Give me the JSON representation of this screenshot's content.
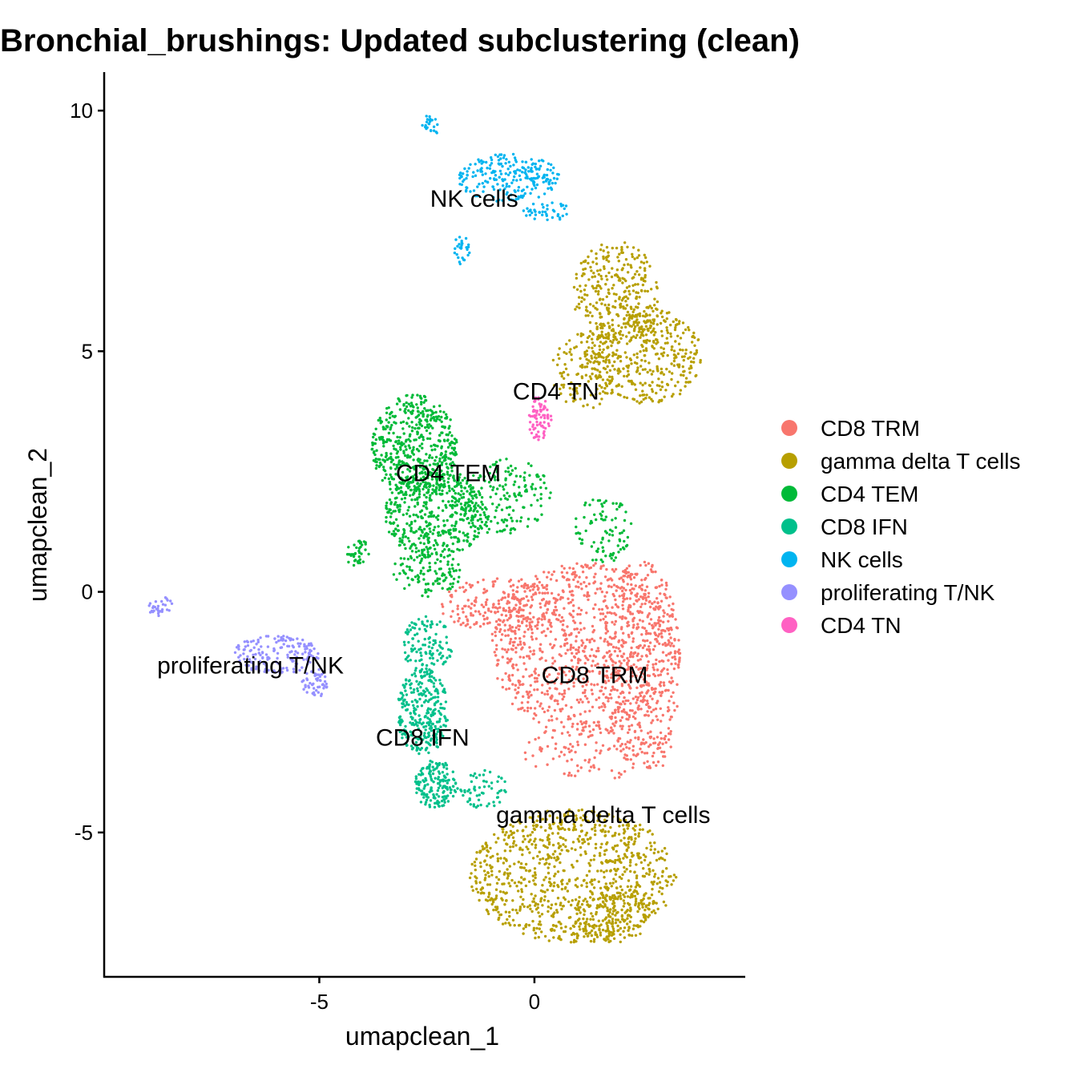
{
  "chart_data": {
    "type": "scatter",
    "title": "Bronchial_brushings: Updated subclustering (clean)",
    "xlabel": "umapclean_1",
    "ylabel": "umapclean_2",
    "xlim": [
      -10.0,
      4.9
    ],
    "ylim": [
      -8,
      10.8
    ],
    "x_ticks": [
      -5,
      0
    ],
    "y_ticks": [
      -5,
      0,
      5,
      10
    ],
    "grid": false,
    "legend_position": "right",
    "series": [
      {
        "name": "CD8 TRM",
        "color": "#F8766D",
        "label": "CD8 TRM",
        "label_pos": [
          1.4,
          -1.9
        ],
        "regions": [
          {
            "cx": 1.2,
            "cy": -1.2,
            "rx": 2.2,
            "ry": 1.8,
            "n": 900
          },
          {
            "cx": 2.5,
            "cy": -1.5,
            "rx": 0.9,
            "ry": 2.2,
            "n": 420
          },
          {
            "cx": -0.8,
            "cy": -0.3,
            "rx": 1.4,
            "ry": 0.6,
            "n": 220
          },
          {
            "cx": 1.5,
            "cy": -3.3,
            "rx": 1.8,
            "ry": 0.6,
            "n": 120
          }
        ]
      },
      {
        "name": "gamma delta T cells",
        "color": "#B79F00",
        "label": "gamma delta T cells",
        "label_pos": [
          1.6,
          -4.8
        ],
        "regions": [
          {
            "cx": 0.9,
            "cy": -5.9,
            "rx": 2.4,
            "ry": 1.4,
            "n": 900
          },
          {
            "cx": 1.8,
            "cy": -6.7,
            "rx": 0.9,
            "ry": 0.6,
            "n": 180
          },
          {
            "cx": 1.9,
            "cy": 6.2,
            "rx": 1.0,
            "ry": 1.1,
            "n": 320
          },
          {
            "cx": 2.6,
            "cy": 4.9,
            "rx": 1.3,
            "ry": 1.0,
            "n": 380
          },
          {
            "cx": 1.2,
            "cy": 4.6,
            "rx": 0.8,
            "ry": 0.8,
            "n": 140
          }
        ]
      },
      {
        "name": "CD4 TEM",
        "color": "#00BA38",
        "label": "CD4 TEM",
        "label_pos": [
          -2.0,
          2.3
        ],
        "regions": [
          {
            "cx": -2.8,
            "cy": 3.0,
            "rx": 1.0,
            "ry": 1.1,
            "n": 520
          },
          {
            "cx": -2.3,
            "cy": 1.6,
            "rx": 1.2,
            "ry": 0.9,
            "n": 420
          },
          {
            "cx": -0.8,
            "cy": 2.0,
            "rx": 1.2,
            "ry": 0.8,
            "n": 200
          },
          {
            "cx": 1.6,
            "cy": 1.3,
            "rx": 0.7,
            "ry": 0.7,
            "n": 90
          },
          {
            "cx": -4.1,
            "cy": 0.8,
            "rx": 0.3,
            "ry": 0.3,
            "n": 40
          },
          {
            "cx": -2.5,
            "cy": 0.4,
            "rx": 0.8,
            "ry": 0.5,
            "n": 110
          }
        ]
      },
      {
        "name": "CD8 IFN",
        "color": "#00C08B",
        "label": "CD8 IFN",
        "label_pos": [
          -2.6,
          -3.2
        ],
        "regions": [
          {
            "cx": -2.5,
            "cy": -1.1,
            "rx": 0.6,
            "ry": 0.6,
            "n": 120
          },
          {
            "cx": -2.6,
            "cy": -2.5,
            "rx": 0.6,
            "ry": 0.9,
            "n": 280
          },
          {
            "cx": -2.3,
            "cy": -4.0,
            "rx": 0.5,
            "ry": 0.5,
            "n": 160
          },
          {
            "cx": -1.2,
            "cy": -4.1,
            "rx": 0.6,
            "ry": 0.4,
            "n": 60
          }
        ]
      },
      {
        "name": "NK cells",
        "color": "#00B4F0",
        "label": "NK cells",
        "label_pos": [
          -1.4,
          8.0
        ],
        "regions": [
          {
            "cx": -0.6,
            "cy": 8.6,
            "rx": 1.2,
            "ry": 0.5,
            "n": 230
          },
          {
            "cx": -2.4,
            "cy": 9.7,
            "rx": 0.3,
            "ry": 0.2,
            "n": 24
          },
          {
            "cx": -1.7,
            "cy": 7.1,
            "rx": 0.2,
            "ry": 0.3,
            "n": 28
          },
          {
            "cx": 0.3,
            "cy": 7.9,
            "rx": 0.6,
            "ry": 0.2,
            "n": 40
          }
        ]
      },
      {
        "name": "proliferating T/NK",
        "color": "#9590FF",
        "label": "proliferating T/NK",
        "label_pos": [
          -6.6,
          -1.7
        ],
        "regions": [
          {
            "cx": -8.7,
            "cy": -0.3,
            "rx": 0.3,
            "ry": 0.2,
            "n": 30
          },
          {
            "cx": -6.0,
            "cy": -1.3,
            "rx": 1.0,
            "ry": 0.4,
            "n": 170
          },
          {
            "cx": -5.1,
            "cy": -1.9,
            "rx": 0.3,
            "ry": 0.3,
            "n": 50
          }
        ]
      },
      {
        "name": "CD4 TN",
        "color": "#FF61C3",
        "label": "CD4 TN",
        "label_pos": [
          0.5,
          4.0
        ],
        "regions": [
          {
            "cx": 0.1,
            "cy": 3.6,
            "rx": 0.3,
            "ry": 0.45,
            "n": 75
          }
        ]
      }
    ]
  }
}
